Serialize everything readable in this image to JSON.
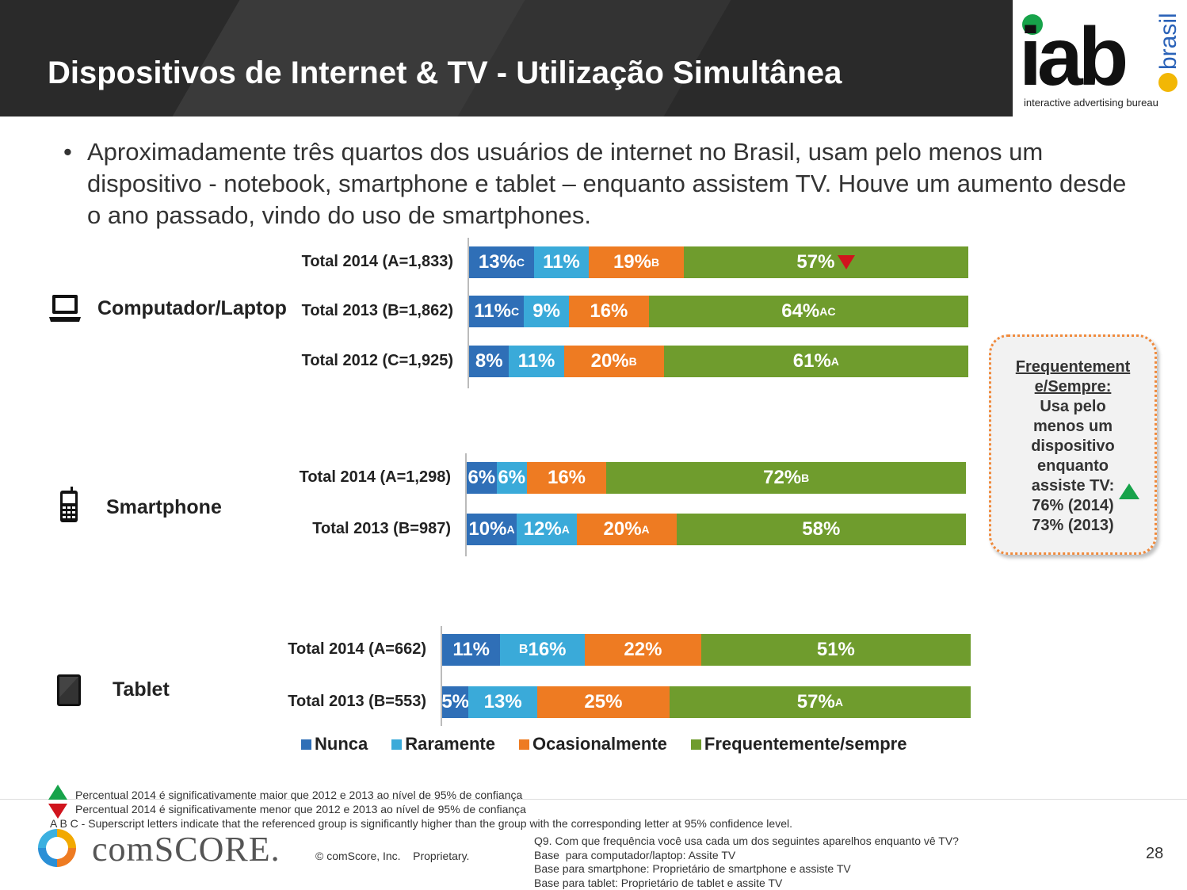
{
  "header": {
    "title": "Dispositivos de Internet & TV - Utilização Simultânea"
  },
  "logo": {
    "iab": "iab",
    "brasil": "brasil",
    "tagline": "interactive advertising bureau"
  },
  "bullet": "Aproximadamente três quartos dos usuários de internet no Brasil, usam pelo menos um dispositivo - notebook, smartphone e tablet – enquanto assistem TV. Houve um aumento desde o ano passado, vindo do uso de smartphones.",
  "chart_data": {
    "type": "bar",
    "orientation": "horizontal",
    "stacked": true,
    "series_names": [
      "Nunca",
      "Raramente",
      "Ocasionalmente",
      "Frequentemente/sempre"
    ],
    "colors": [
      "#2f6fb7",
      "#3aaad9",
      "#ee7b22",
      "#6f9c2d"
    ],
    "legend_position": "bottom",
    "groups": [
      {
        "name": "Computador/Laptop",
        "icon": "laptop-icon",
        "rows": [
          {
            "label": "Total 2014 (A=1,833)",
            "values": [
              13,
              11,
              19,
              57
            ],
            "sup": [
              "C",
              "",
              "B",
              ""
            ],
            "sub": [
              "",
              "",
              "",
              ""
            ],
            "prefix": [
              "",
              "",
              "",
              ""
            ],
            "marker": [
              "",
              "",
              "",
              "down"
            ]
          },
          {
            "label": "Total 2013 (B=1,862)",
            "values": [
              11,
              9,
              16,
              64
            ],
            "sup": [
              "C",
              "",
              "",
              "AC"
            ],
            "sub": [
              "",
              "",
              "",
              ""
            ],
            "prefix": [
              "",
              "",
              "",
              ""
            ],
            "marker": [
              "",
              "",
              "",
              ""
            ]
          },
          {
            "label": "Total 2012 (C=1,925)",
            "values": [
              8,
              11,
              20,
              61
            ],
            "sup": [
              "",
              "",
              "B",
              "A"
            ],
            "sub": [
              "",
              "",
              "",
              ""
            ],
            "prefix": [
              "",
              "",
              "",
              ""
            ],
            "marker": [
              "",
              "",
              "",
              ""
            ]
          }
        ]
      },
      {
        "name": "Smartphone",
        "icon": "smartphone-icon",
        "rows": [
          {
            "label": "Total 2014 (A=1,298)",
            "values": [
              6,
              6,
              16,
              72
            ],
            "sup": [
              "",
              "",
              "",
              "B"
            ],
            "sub": [
              "",
              "",
              "",
              ""
            ],
            "prefix": [
              "",
              "",
              "",
              ""
            ],
            "marker": [
              "",
              "",
              "",
              ""
            ]
          },
          {
            "label": "Total 2013 (B=987)",
            "values": [
              10,
              12,
              20,
              58
            ],
            "sup": [
              "A",
              "A",
              "A",
              ""
            ],
            "sub": [
              "",
              "",
              "",
              ""
            ],
            "prefix": [
              "",
              "",
              "",
              ""
            ],
            "marker": [
              "",
              "",
              "",
              ""
            ]
          }
        ]
      },
      {
        "name": "Tablet",
        "icon": "tablet-icon",
        "rows": [
          {
            "label": "Total 2014 (A=662)",
            "values": [
              11,
              16,
              22,
              51
            ],
            "sup": [
              "",
              "",
              "",
              ""
            ],
            "sub": [
              "",
              "",
              "",
              ""
            ],
            "prefix": [
              "",
              "B",
              "",
              ""
            ],
            "marker": [
              "",
              "",
              "",
              ""
            ]
          },
          {
            "label": "Total 2013 (B=553)",
            "values": [
              5,
              13,
              25,
              57
            ],
            "sup": [
              "",
              "",
              "",
              ""
            ],
            "sub": [
              "",
              "",
              "",
              "A"
            ],
            "prefix": [
              "",
              "",
              "",
              ""
            ],
            "marker": [
              "",
              "",
              "",
              ""
            ]
          }
        ]
      }
    ]
  },
  "callout": {
    "heading": "Frequentement e/Sempre:",
    "lines": [
      "Usa pelo",
      "menos um",
      "dispositivo",
      "enquanto",
      "assiste TV:",
      "76% (2014)",
      "73% (2013)"
    ]
  },
  "footer": {
    "note_up": "Percentual 2014 é significativamente maior que 2012 e 2013 ao nível de 95% de confiança",
    "note_down": "Percentual 2014 é significativamente menor que 2012 e 2013 ao nível de 95% de confiança",
    "note_abc": "A B C - Superscript letters indicate that the referenced group is significantly higher than the group with the corresponding letter at 95% confidence level.",
    "brand": "comSCORE.",
    "copyright": "© comScore, Inc.    Proprietary.",
    "q9": "Q9. Com que frequência você usa cada um dos seguintes aparelhos enquanto vê TV?",
    "base1": "Base  para computador/laptop: Assite TV",
    "base2": "Base para smartphone: Proprietário de smartphone e assiste TV",
    "base3": "Base para tablet: Proprietário de tablet e assite TV",
    "page": "28"
  }
}
